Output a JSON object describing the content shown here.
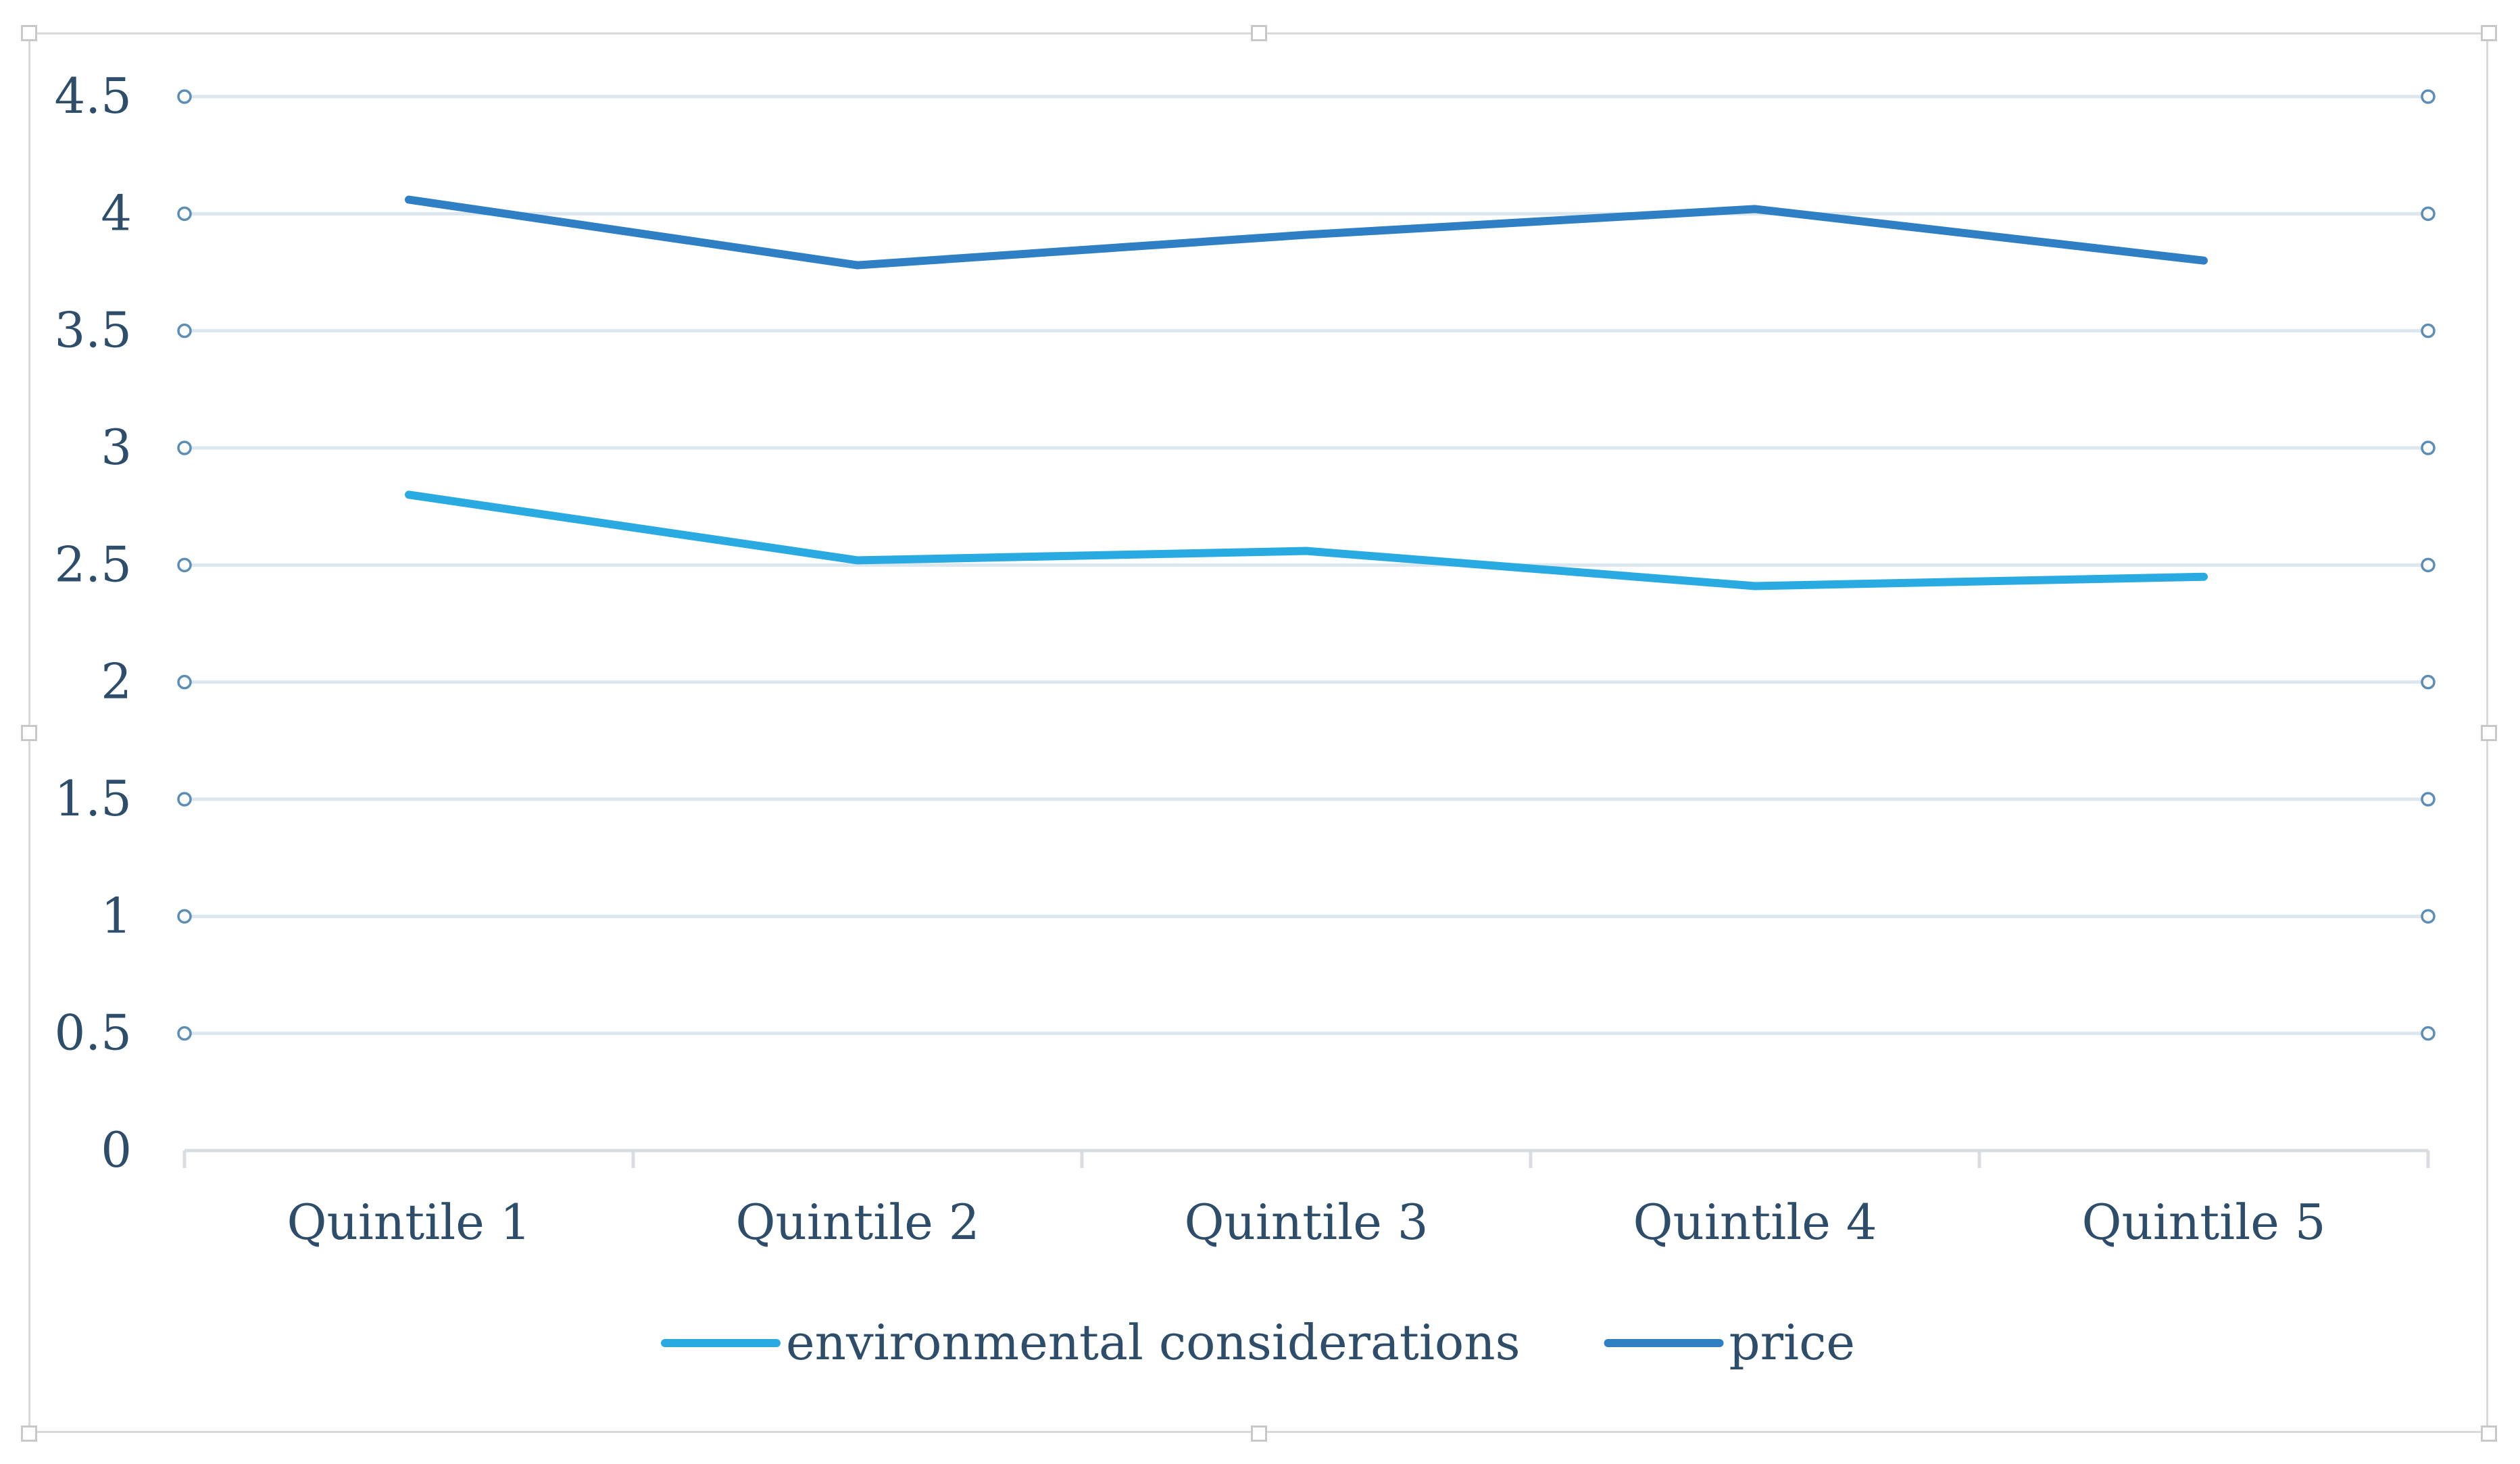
{
  "chart_data": {
    "type": "line",
    "title": "",
    "xlabel": "",
    "ylabel": "",
    "categories": [
      "Quintile 1",
      "Quintile 2",
      "Quintile 3",
      "Quintile 4",
      "Quintile 5"
    ],
    "ylim": [
      0,
      4.5
    ],
    "yticks": [
      "0",
      "0.5",
      "1",
      "1.5",
      "2",
      "2.5",
      "3",
      "3.5",
      "4",
      "4.5"
    ],
    "grid": true,
    "legend_position": "bottom",
    "series": [
      {
        "name": "environmental considerations",
        "color": "#29abe2",
        "values": [
          2.8,
          2.52,
          2.56,
          2.41,
          2.45
        ]
      },
      {
        "name": "price",
        "color": "#2e7fc4",
        "values": [
          4.06,
          3.78,
          3.91,
          4.02,
          3.8
        ]
      }
    ]
  }
}
